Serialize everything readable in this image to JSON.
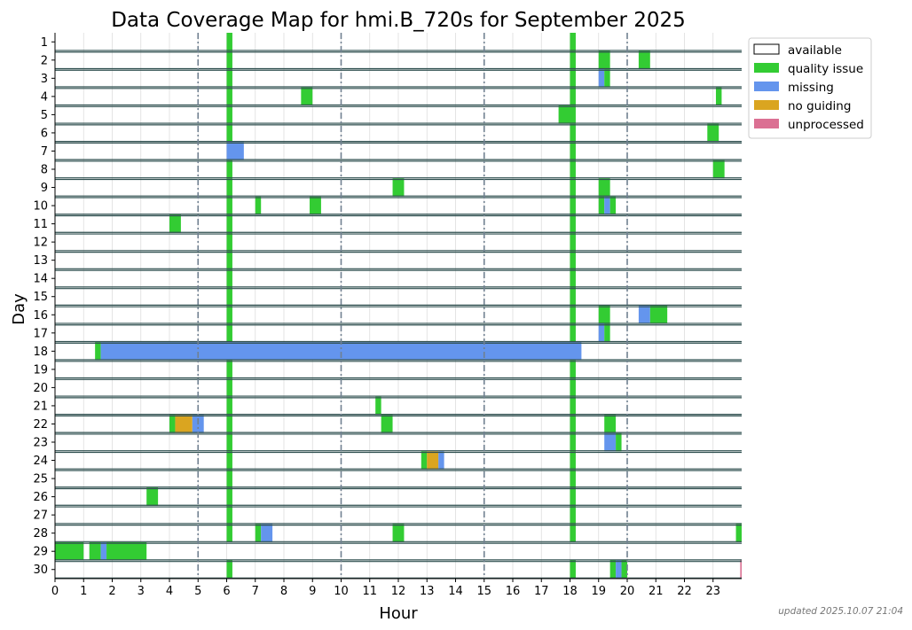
{
  "chart_data": {
    "type": "heatmap",
    "title": "Data Coverage Map for hmi.B_720s for September 2025",
    "xlabel": "Hour",
    "ylabel": "Day",
    "xlim": [
      0,
      24
    ],
    "ylim": [
      1,
      30
    ],
    "x_ticks": [
      "0",
      "1",
      "2",
      "3",
      "4",
      "5",
      "6",
      "7",
      "8",
      "9",
      "10",
      "11",
      "12",
      "13",
      "14",
      "15",
      "16",
      "17",
      "18",
      "19",
      "20",
      "21",
      "22",
      "23"
    ],
    "y_ticks": [
      "1",
      "2",
      "3",
      "4",
      "5",
      "6",
      "7",
      "8",
      "9",
      "10",
      "11",
      "12",
      "13",
      "14",
      "15",
      "16",
      "17",
      "18",
      "19",
      "20",
      "21",
      "22",
      "23",
      "24",
      "25",
      "26",
      "27",
      "28",
      "29",
      "30"
    ],
    "dashed_hours": [
      5,
      10,
      15,
      20
    ],
    "grid": true,
    "legend_position": "top-right",
    "legend": [
      {
        "key": "available",
        "label": "available",
        "color": "#ffffff"
      },
      {
        "key": "quality",
        "label": "quality issue",
        "color": "#33cc33"
      },
      {
        "key": "missing",
        "label": "missing",
        "color": "#6495ed"
      },
      {
        "key": "noguiding",
        "label": "no guiding",
        "color": "#daa520"
      },
      {
        "key": "unprocessed",
        "label": "unprocessed",
        "color": "#db7093"
      }
    ],
    "colors": {
      "quality": "#33cc33",
      "missing": "#6495ed",
      "noguiding": "#daa520",
      "unprocessed": "#db7093",
      "row_line": "#2f4f4f",
      "dashed_line": "#708090"
    },
    "segments": [
      {
        "day": 1,
        "start": 6.0,
        "end": 6.2,
        "status": "quality"
      },
      {
        "day": 1,
        "start": 18.0,
        "end": 18.2,
        "status": "quality"
      },
      {
        "day": 2,
        "start": 6.0,
        "end": 6.2,
        "status": "quality"
      },
      {
        "day": 2,
        "start": 18.0,
        "end": 18.2,
        "status": "quality"
      },
      {
        "day": 2,
        "start": 19.0,
        "end": 19.4,
        "status": "quality"
      },
      {
        "day": 2,
        "start": 20.4,
        "end": 20.8,
        "status": "quality"
      },
      {
        "day": 3,
        "start": 6.0,
        "end": 6.2,
        "status": "quality"
      },
      {
        "day": 3,
        "start": 18.0,
        "end": 18.2,
        "status": "quality"
      },
      {
        "day": 3,
        "start": 19.0,
        "end": 19.2,
        "status": "missing"
      },
      {
        "day": 3,
        "start": 19.2,
        "end": 19.4,
        "status": "quality"
      },
      {
        "day": 4,
        "start": 6.0,
        "end": 6.2,
        "status": "quality"
      },
      {
        "day": 4,
        "start": 8.6,
        "end": 9.0,
        "status": "quality"
      },
      {
        "day": 4,
        "start": 18.0,
        "end": 18.2,
        "status": "quality"
      },
      {
        "day": 4,
        "start": 23.1,
        "end": 23.3,
        "status": "quality"
      },
      {
        "day": 5,
        "start": 6.0,
        "end": 6.2,
        "status": "quality"
      },
      {
        "day": 5,
        "start": 17.6,
        "end": 18.2,
        "status": "quality"
      },
      {
        "day": 6,
        "start": 6.0,
        "end": 6.2,
        "status": "quality"
      },
      {
        "day": 6,
        "start": 18.0,
        "end": 18.2,
        "status": "quality"
      },
      {
        "day": 6,
        "start": 22.8,
        "end": 23.2,
        "status": "quality"
      },
      {
        "day": 7,
        "start": 6.0,
        "end": 6.6,
        "status": "missing"
      },
      {
        "day": 7,
        "start": 18.0,
        "end": 18.2,
        "status": "quality"
      },
      {
        "day": 8,
        "start": 6.0,
        "end": 6.2,
        "status": "quality"
      },
      {
        "day": 8,
        "start": 18.0,
        "end": 18.2,
        "status": "quality"
      },
      {
        "day": 8,
        "start": 23.0,
        "end": 23.4,
        "status": "quality"
      },
      {
        "day": 9,
        "start": 6.0,
        "end": 6.2,
        "status": "quality"
      },
      {
        "day": 9,
        "start": 11.8,
        "end": 12.2,
        "status": "quality"
      },
      {
        "day": 9,
        "start": 18.0,
        "end": 18.2,
        "status": "quality"
      },
      {
        "day": 9,
        "start": 19.0,
        "end": 19.4,
        "status": "quality"
      },
      {
        "day": 10,
        "start": 6.0,
        "end": 6.2,
        "status": "quality"
      },
      {
        "day": 10,
        "start": 7.0,
        "end": 7.2,
        "status": "quality"
      },
      {
        "day": 10,
        "start": 8.9,
        "end": 9.3,
        "status": "quality"
      },
      {
        "day": 10,
        "start": 18.0,
        "end": 18.2,
        "status": "quality"
      },
      {
        "day": 10,
        "start": 19.0,
        "end": 19.2,
        "status": "quality"
      },
      {
        "day": 10,
        "start": 19.2,
        "end": 19.4,
        "status": "missing"
      },
      {
        "day": 10,
        "start": 19.4,
        "end": 19.6,
        "status": "quality"
      },
      {
        "day": 11,
        "start": 4.0,
        "end": 4.4,
        "status": "quality"
      },
      {
        "day": 11,
        "start": 6.0,
        "end": 6.2,
        "status": "quality"
      },
      {
        "day": 11,
        "start": 18.0,
        "end": 18.2,
        "status": "quality"
      },
      {
        "day": 12,
        "start": 6.0,
        "end": 6.2,
        "status": "quality"
      },
      {
        "day": 12,
        "start": 18.0,
        "end": 18.2,
        "status": "quality"
      },
      {
        "day": 13,
        "start": 6.0,
        "end": 6.2,
        "status": "quality"
      },
      {
        "day": 13,
        "start": 18.0,
        "end": 18.2,
        "status": "quality"
      },
      {
        "day": 14,
        "start": 6.0,
        "end": 6.2,
        "status": "quality"
      },
      {
        "day": 14,
        "start": 18.0,
        "end": 18.2,
        "status": "quality"
      },
      {
        "day": 15,
        "start": 6.0,
        "end": 6.2,
        "status": "quality"
      },
      {
        "day": 15,
        "start": 18.0,
        "end": 18.2,
        "status": "quality"
      },
      {
        "day": 16,
        "start": 6.0,
        "end": 6.2,
        "status": "quality"
      },
      {
        "day": 16,
        "start": 18.0,
        "end": 18.2,
        "status": "quality"
      },
      {
        "day": 16,
        "start": 19.0,
        "end": 19.4,
        "status": "quality"
      },
      {
        "day": 16,
        "start": 20.4,
        "end": 20.8,
        "status": "missing"
      },
      {
        "day": 16,
        "start": 20.8,
        "end": 21.4,
        "status": "quality"
      },
      {
        "day": 17,
        "start": 6.0,
        "end": 6.2,
        "status": "quality"
      },
      {
        "day": 17,
        "start": 18.0,
        "end": 18.2,
        "status": "quality"
      },
      {
        "day": 17,
        "start": 19.0,
        "end": 19.2,
        "status": "missing"
      },
      {
        "day": 17,
        "start": 19.2,
        "end": 19.4,
        "status": "quality"
      },
      {
        "day": 18,
        "start": 1.4,
        "end": 1.6,
        "status": "quality"
      },
      {
        "day": 18,
        "start": 1.6,
        "end": 18.4,
        "status": "missing"
      },
      {
        "day": 19,
        "start": 6.0,
        "end": 6.2,
        "status": "quality"
      },
      {
        "day": 19,
        "start": 18.0,
        "end": 18.2,
        "status": "quality"
      },
      {
        "day": 20,
        "start": 6.0,
        "end": 6.2,
        "status": "quality"
      },
      {
        "day": 20,
        "start": 18.0,
        "end": 18.2,
        "status": "quality"
      },
      {
        "day": 21,
        "start": 6.0,
        "end": 6.2,
        "status": "quality"
      },
      {
        "day": 21,
        "start": 11.2,
        "end": 11.4,
        "status": "quality"
      },
      {
        "day": 21,
        "start": 18.0,
        "end": 18.2,
        "status": "quality"
      },
      {
        "day": 22,
        "start": 4.0,
        "end": 4.2,
        "status": "quality"
      },
      {
        "day": 22,
        "start": 4.2,
        "end": 4.8,
        "status": "noguiding"
      },
      {
        "day": 22,
        "start": 4.8,
        "end": 5.2,
        "status": "missing"
      },
      {
        "day": 22,
        "start": 6.0,
        "end": 6.2,
        "status": "quality"
      },
      {
        "day": 22,
        "start": 11.4,
        "end": 11.8,
        "status": "quality"
      },
      {
        "day": 22,
        "start": 18.0,
        "end": 18.2,
        "status": "quality"
      },
      {
        "day": 22,
        "start": 19.2,
        "end": 19.6,
        "status": "quality"
      },
      {
        "day": 23,
        "start": 6.0,
        "end": 6.2,
        "status": "quality"
      },
      {
        "day": 23,
        "start": 18.0,
        "end": 18.2,
        "status": "quality"
      },
      {
        "day": 23,
        "start": 19.2,
        "end": 19.6,
        "status": "missing"
      },
      {
        "day": 23,
        "start": 19.6,
        "end": 19.8,
        "status": "quality"
      },
      {
        "day": 24,
        "start": 6.0,
        "end": 6.2,
        "status": "quality"
      },
      {
        "day": 24,
        "start": 12.8,
        "end": 13.0,
        "status": "quality"
      },
      {
        "day": 24,
        "start": 13.0,
        "end": 13.4,
        "status": "noguiding"
      },
      {
        "day": 24,
        "start": 13.4,
        "end": 13.6,
        "status": "missing"
      },
      {
        "day": 24,
        "start": 18.0,
        "end": 18.2,
        "status": "quality"
      },
      {
        "day": 25,
        "start": 6.0,
        "end": 6.2,
        "status": "quality"
      },
      {
        "day": 25,
        "start": 18.0,
        "end": 18.2,
        "status": "quality"
      },
      {
        "day": 26,
        "start": 3.2,
        "end": 3.6,
        "status": "quality"
      },
      {
        "day": 26,
        "start": 6.0,
        "end": 6.2,
        "status": "quality"
      },
      {
        "day": 26,
        "start": 18.0,
        "end": 18.2,
        "status": "quality"
      },
      {
        "day": 27,
        "start": 6.0,
        "end": 6.2,
        "status": "quality"
      },
      {
        "day": 27,
        "start": 18.0,
        "end": 18.2,
        "status": "quality"
      },
      {
        "day": 28,
        "start": 6.0,
        "end": 6.2,
        "status": "quality"
      },
      {
        "day": 28,
        "start": 7.0,
        "end": 7.2,
        "status": "quality"
      },
      {
        "day": 28,
        "start": 7.2,
        "end": 7.6,
        "status": "missing"
      },
      {
        "day": 28,
        "start": 11.8,
        "end": 12.2,
        "status": "quality"
      },
      {
        "day": 28,
        "start": 18.0,
        "end": 18.2,
        "status": "quality"
      },
      {
        "day": 28,
        "start": 23.8,
        "end": 24.0,
        "status": "quality"
      },
      {
        "day": 29,
        "start": 0.0,
        "end": 1.0,
        "status": "quality"
      },
      {
        "day": 29,
        "start": 1.2,
        "end": 1.6,
        "status": "quality"
      },
      {
        "day": 29,
        "start": 1.6,
        "end": 1.8,
        "status": "missing"
      },
      {
        "day": 29,
        "start": 1.8,
        "end": 3.2,
        "status": "quality"
      },
      {
        "day": 30,
        "start": 6.0,
        "end": 6.2,
        "status": "quality"
      },
      {
        "day": 30,
        "start": 18.0,
        "end": 18.2,
        "status": "quality"
      },
      {
        "day": 30,
        "start": 19.4,
        "end": 19.6,
        "status": "quality"
      },
      {
        "day": 30,
        "start": 19.6,
        "end": 19.8,
        "status": "missing"
      },
      {
        "day": 30,
        "start": 19.8,
        "end": 20.0,
        "status": "quality"
      },
      {
        "day": 30,
        "start": 23.95,
        "end": 24.0,
        "status": "unprocessed"
      }
    ]
  },
  "footnote": "updated 2025.10.07 21:04"
}
